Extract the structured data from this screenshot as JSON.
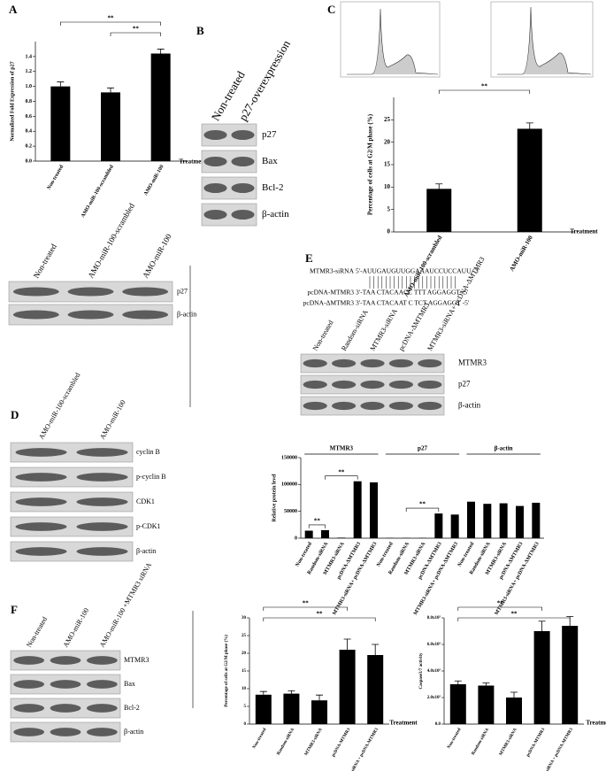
{
  "panel_labels": [
    "A",
    "B",
    "C",
    "D",
    "E",
    "F"
  ],
  "chart_data": [
    {
      "type": "bar",
      "ylabel": "Normalized Fold Expression of p27",
      "xlabel": "Treatment",
      "categories": [
        "Non-treated",
        "AMO-miR-100-scrambled",
        "AMO-miR-100"
      ],
      "values": [
        1.0,
        0.92,
        1.44
      ],
      "errors": [
        0.06,
        0.06,
        0.06
      ],
      "color": "#000000",
      "ylim": [
        0,
        1.6
      ],
      "yticks": [
        {
          "value": 0,
          "label": "0.0"
        },
        {
          "value": 0.2,
          "label": "0.2"
        },
        {
          "value": 0.4,
          "label": "0.4"
        },
        {
          "value": 0.6,
          "label": "0.6"
        },
        {
          "value": 0.8,
          "label": "0.8"
        },
        {
          "value": 1.0,
          "label": "1.0"
        },
        {
          "value": 1.2,
          "label": "1.2"
        },
        {
          "value": 1.4,
          "label": "1.4"
        }
      ],
      "annotations": [
        "**",
        "**"
      ]
    },
    {
      "type": "bar",
      "ylabel": "Percentage of cells at G2/M phase (%)",
      "xlabel": "Treatment",
      "categories": [
        "AMO-miR-100-scrambled",
        "AMO-miR-100"
      ],
      "values": [
        9.6,
        23.0
      ],
      "errors": [
        1.1,
        1.3
      ],
      "color": "#000000",
      "ylim": [
        0,
        30
      ],
      "yticks": [
        0,
        5,
        10,
        15,
        20,
        25
      ],
      "annotations": [
        "**"
      ]
    },
    {
      "type": "bar",
      "ylabel": "Relative protein level",
      "groups": [
        "MTMR3",
        "p27",
        "β-actin"
      ],
      "categories": [
        "Non-treated",
        "Random-siRNA",
        "MTMR3-siRNA",
        "pcDNA-ΔMTMR3",
        "MTMR3-siRNA+ pcDNA-ΔMTMR3",
        "Non-treated",
        "Random-siRNA",
        "MTMR3-siRNA",
        "pcDNA-ΔMTMR3",
        "MTMR3-siRNA+ pcDNA-ΔMTMR3",
        "Non-treated",
        "Random-siRNA",
        "MTMR3-siRNA",
        "pcDNA-ΔMTMR3",
        "MTMR3-siRNA+ pcDNA-ΔMTMR3"
      ],
      "values": [
        14000,
        15000,
        1000,
        106000,
        104000,
        500,
        500,
        500,
        46000,
        44000,
        68000,
        64000,
        65000,
        60000,
        66000
      ],
      "color": "#000000",
      "ylim": [
        0,
        150000
      ],
      "yticks": [
        0,
        50000,
        100000,
        150000
      ],
      "annotations": [
        "**",
        "**",
        "**"
      ]
    },
    {
      "type": "bar",
      "ylabel": "Percentage of cells at G2/M phase (%)",
      "xlabel": "Treatment",
      "categories": [
        "Non-treated",
        "Random-siRNA",
        "MTMR3-siRNA",
        "pcDNA-MTMR3",
        "MTMR3-siRNA + pcDNA-MTMR3"
      ],
      "values": [
        8.3,
        8.6,
        6.7,
        21.0,
        19.5
      ],
      "errors": [
        0.9,
        0.8,
        1.5,
        3.0,
        3.0
      ],
      "color": "#000000",
      "ylim": [
        0,
        30
      ],
      "yticks": [
        0,
        5,
        10,
        15,
        20,
        25,
        30
      ],
      "annotations": [
        "**",
        "**"
      ]
    },
    {
      "type": "bar",
      "ylabel": "Caspase3/7 activity",
      "xlabel": "Treatment",
      "categories": [
        "Non-treated",
        "Random-siRNA",
        "MTMR3-siRNA",
        "pcDNA-MTMR3",
        "MTMR3-siRNA + pcDNA-MTMR3"
      ],
      "values": [
        300000,
        290000,
        200000,
        700000,
        740000
      ],
      "errors": [
        25000,
        20000,
        40000,
        75000,
        70000
      ],
      "color": "#000000",
      "ylim": [
        0,
        800000
      ],
      "yticks": [
        {
          "value": 0,
          "label": "0.0"
        },
        {
          "value": 200000,
          "label": "2.0x10⁵"
        },
        {
          "value": 400000,
          "label": "4.0x10⁵"
        },
        {
          "value": 600000,
          "label": "6.0x10⁵"
        },
        {
          "value": 800000,
          "label": "8.0x10⁵"
        }
      ],
      "annotations": [
        "**",
        "**"
      ]
    }
  ],
  "blots": [
    {
      "lanes": [
        "Non-treated",
        "AMO-miR-100-scrambled",
        "AMO-miR-100"
      ],
      "bands": [
        "p27",
        "β-actin"
      ]
    },
    {
      "lanes": [
        "Non-treated",
        "p27-overexpression"
      ],
      "bands": [
        "p27",
        "Bax",
        "Bcl-2",
        "β-actin"
      ]
    },
    {
      "lanes": [
        "AMO-miR-100-scrambled",
        "AMO-miR-100"
      ],
      "bands": [
        "cyclin B",
        "p-cyclin B",
        "CDK1",
        "p-CDK1",
        "β-actin"
      ]
    },
    {
      "lanes": [
        "Non-treated",
        "Random-siRNA",
        "MTMR3-siRNA",
        "pcDNA-ΔMTMR3",
        "MTMR3-siRNA+ pcDNA-ΔMTMR3"
      ],
      "bands": [
        "MTMR3",
        "p27",
        "β-actin"
      ]
    },
    {
      "lanes": [
        "Non-treated",
        "AMO-miR-100",
        "AMO-miR-100 +MTMR3 siRNA"
      ],
      "bands": [
        "MTMR3",
        "Bax",
        "Bcl-2",
        "β-actin"
      ]
    }
  ],
  "sequences": [
    {
      "name": "MTMR3-siRNA",
      "seq": "5'-AUUGAUGUUGGAAAUCCUCCAUU -3'"
    },
    {
      "name": "pcDNA-MTMR3",
      "seq": "3'-TAA CTACAACC TTT AGGAGGT -5'"
    },
    {
      "name": "pcDNA-ΔMTMR3",
      "seq": "3'-TAA CTACAAT C TCT AGGAGGT -5'"
    }
  ]
}
